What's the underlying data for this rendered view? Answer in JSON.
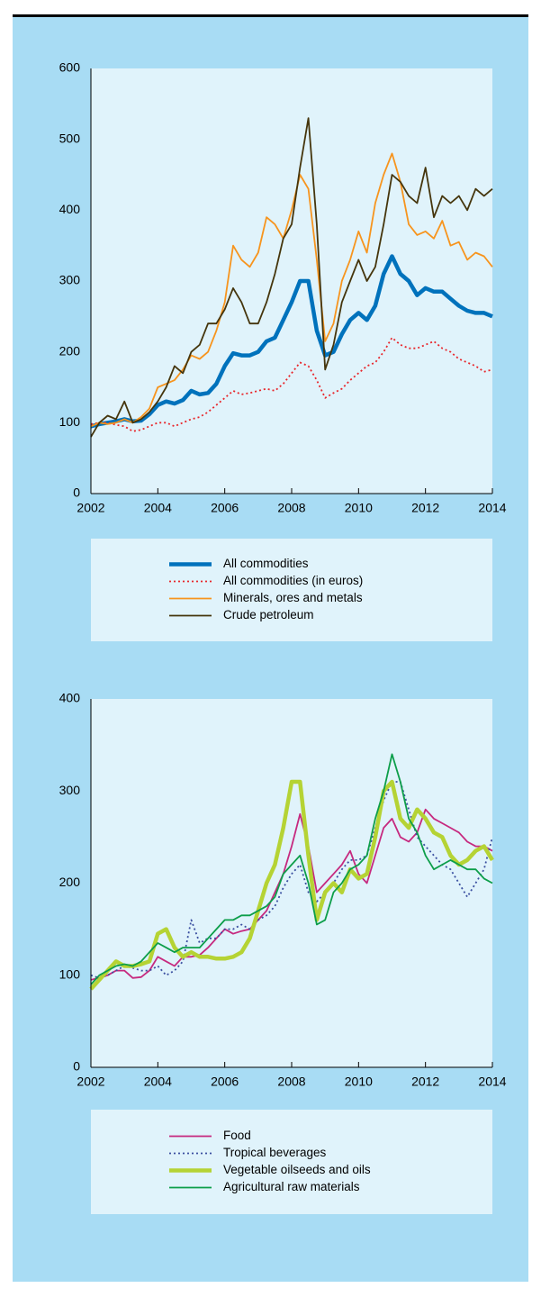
{
  "chart_data": [
    {
      "type": "line",
      "x": [
        2002,
        2002.25,
        2002.5,
        2002.75,
        2003,
        2003.25,
        2003.5,
        2003.75,
        2004,
        2004.25,
        2004.5,
        2004.75,
        2005,
        2005.25,
        2005.5,
        2005.75,
        2006,
        2006.25,
        2006.5,
        2006.75,
        2007,
        2007.25,
        2007.5,
        2007.75,
        2008,
        2008.25,
        2008.5,
        2008.75,
        2009,
        2009.25,
        2009.5,
        2009.75,
        2010,
        2010.25,
        2010.5,
        2010.75,
        2011,
        2011.25,
        2011.5,
        2011.75,
        2012,
        2012.25,
        2012.5,
        2012.75,
        2013,
        2013.25,
        2013.5,
        2013.75,
        2014
      ],
      "xlim": [
        2002,
        2014
      ],
      "xticks": [
        2002,
        2004,
        2006,
        2008,
        2010,
        2012,
        2014
      ],
      "ylim": [
        0,
        600
      ],
      "yticks": [
        0,
        100,
        200,
        300,
        400,
        500,
        600
      ],
      "legend": "bottom",
      "series": [
        {
          "name": "All commodities",
          "color": "#0072bc",
          "line_style": "solid",
          "line_width": "thick",
          "values": [
            95,
            98,
            100,
            102,
            105,
            102,
            103,
            112,
            125,
            130,
            127,
            132,
            145,
            140,
            142,
            155,
            180,
            198,
            195,
            195,
            200,
            215,
            220,
            245,
            270,
            300,
            300,
            230,
            195,
            200,
            225,
            245,
            255,
            245,
            265,
            310,
            335,
            310,
            300,
            280,
            290,
            285,
            285,
            275,
            265,
            258,
            255,
            255,
            250
          ]
        },
        {
          "name": "All commodities (in euros)",
          "color": "#e8262b",
          "line_style": "dotted",
          "line_width": "normal",
          "values": [
            98,
            100,
            100,
            97,
            95,
            88,
            90,
            95,
            100,
            100,
            95,
            100,
            105,
            108,
            115,
            125,
            135,
            145,
            140,
            142,
            145,
            148,
            145,
            155,
            170,
            185,
            180,
            160,
            135,
            142,
            148,
            160,
            170,
            180,
            185,
            200,
            220,
            210,
            205,
            205,
            210,
            215,
            205,
            200,
            190,
            185,
            180,
            172,
            175
          ]
        },
        {
          "name": "Minerals, ores and metals",
          "color": "#f7941d",
          "line_style": "solid",
          "line_width": "normal",
          "values": [
            95,
            100,
            98,
            100,
            105,
            100,
            108,
            120,
            150,
            155,
            160,
            175,
            195,
            190,
            200,
            230,
            270,
            350,
            330,
            320,
            340,
            390,
            380,
            360,
            400,
            450,
            430,
            330,
            215,
            240,
            300,
            330,
            370,
            340,
            410,
            450,
            480,
            440,
            380,
            365,
            370,
            360,
            385,
            350,
            355,
            330,
            340,
            335,
            320
          ]
        },
        {
          "name": "Crude petroleum",
          "color": "#45350c",
          "line_style": "solid",
          "line_width": "normal",
          "values": [
            80,
            100,
            110,
            105,
            130,
            100,
            105,
            115,
            130,
            150,
            180,
            170,
            200,
            210,
            240,
            240,
            260,
            290,
            270,
            240,
            240,
            270,
            310,
            360,
            380,
            460,
            530,
            380,
            175,
            210,
            270,
            300,
            330,
            300,
            320,
            380,
            450,
            440,
            420,
            410,
            460,
            390,
            420,
            410,
            420,
            400,
            430,
            420,
            430
          ]
        }
      ]
    },
    {
      "type": "line",
      "x": [
        2002,
        2002.25,
        2002.5,
        2002.75,
        2003,
        2003.25,
        2003.5,
        2003.75,
        2004,
        2004.25,
        2004.5,
        2004.75,
        2005,
        2005.25,
        2005.5,
        2005.75,
        2006,
        2006.25,
        2006.5,
        2006.75,
        2007,
        2007.25,
        2007.5,
        2007.75,
        2008,
        2008.25,
        2008.5,
        2008.75,
        2009,
        2009.25,
        2009.5,
        2009.75,
        2010,
        2010.25,
        2010.5,
        2010.75,
        2011,
        2011.25,
        2011.5,
        2011.75,
        2012,
        2012.25,
        2012.5,
        2012.75,
        2013,
        2013.25,
        2013.5,
        2013.75,
        2014
      ],
      "xlim": [
        2002,
        2014
      ],
      "xticks": [
        2002,
        2004,
        2006,
        2008,
        2010,
        2012,
        2014
      ],
      "ylim": [
        0,
        400
      ],
      "yticks": [
        0,
        100,
        200,
        300,
        400
      ],
      "legend": "bottom",
      "series": [
        {
          "name": "Food",
          "color": "#c6297f",
          "line_style": "solid",
          "line_width": "normal",
          "values": [
            95,
            97,
            100,
            105,
            105,
            97,
            98,
            105,
            120,
            115,
            110,
            120,
            120,
            122,
            130,
            140,
            150,
            145,
            148,
            150,
            160,
            170,
            190,
            210,
            240,
            275,
            240,
            190,
            200,
            210,
            220,
            235,
            210,
            200,
            230,
            260,
            270,
            250,
            245,
            255,
            280,
            270,
            265,
            260,
            255,
            245,
            240,
            240,
            235
          ]
        },
        {
          "name": "Tropical beverages",
          "color": "#3a4fa0",
          "line_style": "dotted",
          "line_width": "normal",
          "values": [
            100,
            97,
            100,
            105,
            110,
            108,
            105,
            105,
            110,
            100,
            105,
            115,
            160,
            135,
            140,
            140,
            150,
            150,
            155,
            150,
            160,
            165,
            175,
            195,
            210,
            220,
            190,
            180,
            190,
            200,
            215,
            225,
            225,
            230,
            260,
            290,
            310,
            310,
            280,
            250,
            240,
            230,
            220,
            215,
            200,
            185,
            200,
            215,
            250
          ]
        },
        {
          "name": "Vegetable oilseeds and oils",
          "color": "#b5d334",
          "line_style": "solid",
          "line_width": "thick",
          "values": [
            85,
            95,
            105,
            115,
            110,
            110,
            112,
            115,
            145,
            150,
            130,
            120,
            125,
            120,
            120,
            118,
            118,
            120,
            125,
            140,
            170,
            200,
            220,
            260,
            310,
            310,
            230,
            160,
            190,
            200,
            190,
            215,
            205,
            210,
            250,
            300,
            310,
            270,
            260,
            280,
            270,
            255,
            250,
            230,
            220,
            225,
            235,
            240,
            225
          ]
        },
        {
          "name": "Agricultural raw materials",
          "color": "#0d9e4a",
          "line_style": "solid",
          "line_width": "normal",
          "values": [
            90,
            100,
            105,
            110,
            112,
            110,
            115,
            125,
            135,
            130,
            125,
            130,
            130,
            130,
            140,
            150,
            160,
            160,
            165,
            165,
            170,
            175,
            185,
            210,
            220,
            230,
            200,
            155,
            160,
            190,
            200,
            215,
            220,
            230,
            270,
            300,
            340,
            310,
            270,
            255,
            230,
            215,
            220,
            225,
            220,
            215,
            215,
            205,
            200
          ]
        }
      ]
    }
  ]
}
